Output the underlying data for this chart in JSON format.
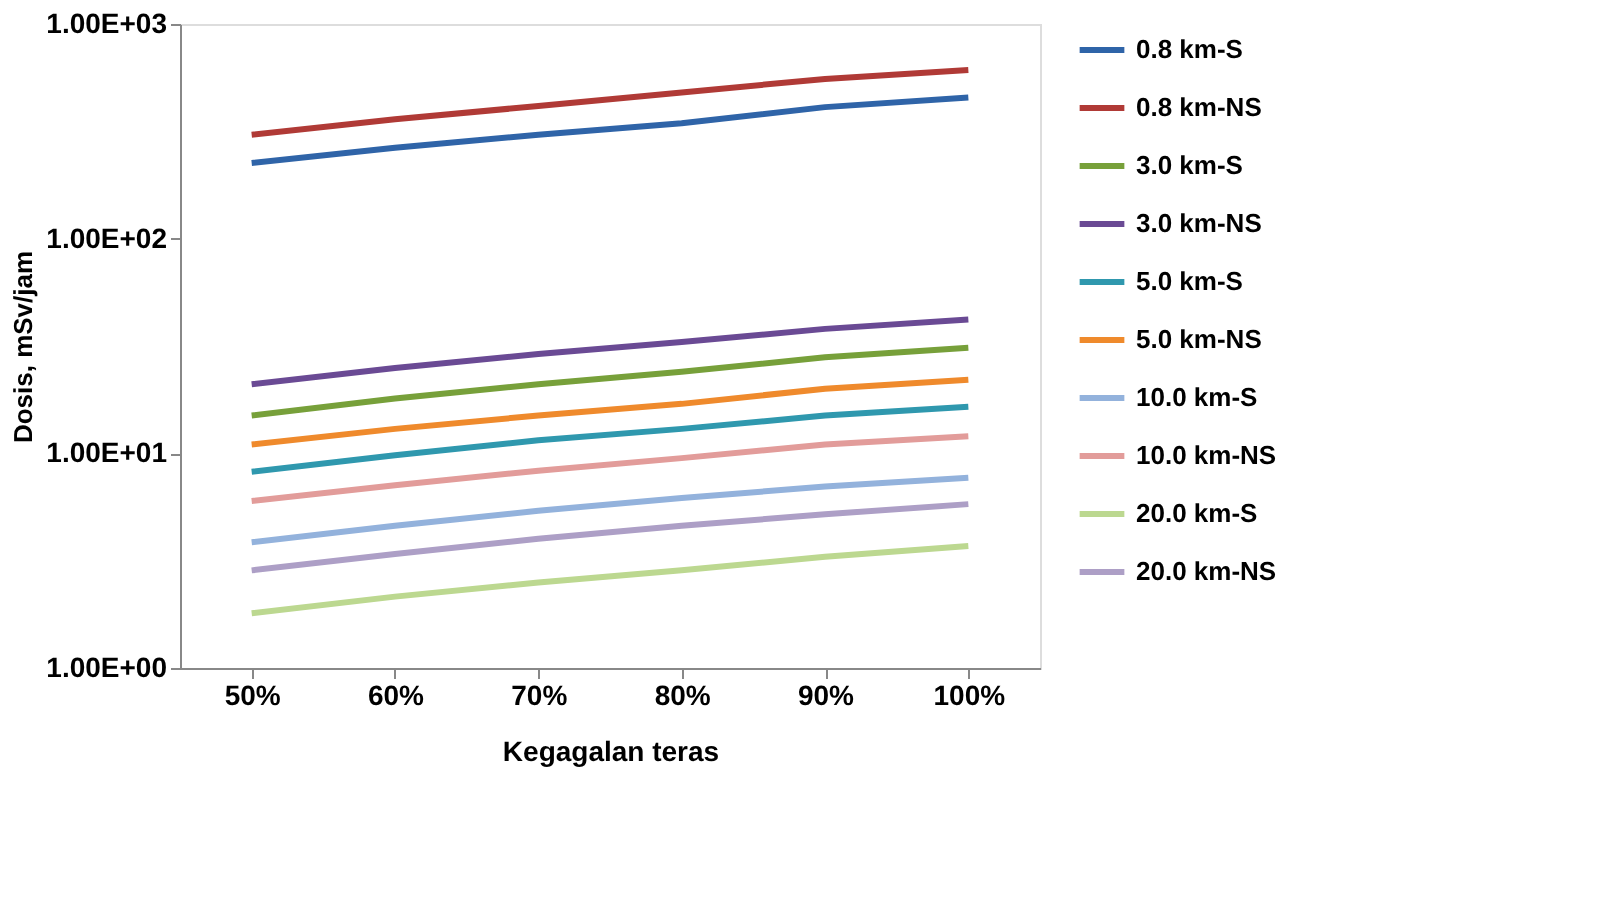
{
  "chart_data": {
    "type": "line",
    "xlabel": "Kegagalan teras",
    "ylabel": "Dosis, mSv/jam",
    "categories": [
      "50%",
      "60%",
      "70%",
      "80%",
      "90%",
      "100%"
    ],
    "log": true,
    "ylim": [
      1,
      1000
    ],
    "yticks": [
      {
        "value": 1,
        "label": "1.00E+00"
      },
      {
        "value": 10,
        "label": "1.00E+01"
      },
      {
        "value": 100,
        "label": "1.00E+02"
      },
      {
        "value": 1000,
        "label": "1.00E+03"
      }
    ],
    "grid": false,
    "legend": "right",
    "marker": "none",
    "line_style": "solid",
    "series": [
      {
        "name": "0.8 km-S",
        "color": "#2f64a8",
        "values": [
          225,
          265,
          305,
          345,
          410,
          455
        ]
      },
      {
        "name": "0.8 km-NS",
        "color": "#b03a36",
        "values": [
          305,
          360,
          415,
          480,
          555,
          610
        ]
      },
      {
        "name": "3.0 km-S",
        "color": "#77a03a",
        "values": [
          15,
          18,
          21,
          24,
          28,
          31
        ]
      },
      {
        "name": "3.0 km-NS",
        "color": "#6a4a94",
        "values": [
          21,
          25,
          29,
          33,
          38,
          42
        ]
      },
      {
        "name": "5.0 km-S",
        "color": "#2f98ae",
        "values": [
          8.2,
          9.8,
          11.5,
          13,
          15,
          16.5
        ]
      },
      {
        "name": "5.0 km-NS",
        "color": "#ef8a2c",
        "values": [
          11,
          13,
          15,
          17,
          20,
          22
        ]
      },
      {
        "name": "10.0 km-S",
        "color": "#93b2dc",
        "values": [
          3.85,
          4.6,
          5.4,
          6.2,
          7,
          7.7
        ]
      },
      {
        "name": "10.0  km-NS",
        "color": "#e29c9a",
        "values": [
          6,
          7.1,
          8.3,
          9.5,
          11,
          12
        ]
      },
      {
        "name": "20.0 km-S",
        "color": "#bcd890",
        "values": [
          1.8,
          2.15,
          2.5,
          2.85,
          3.3,
          3.7
        ]
      },
      {
        "name": "20.0 km-NS",
        "color": "#ad9fc6",
        "values": [
          2.85,
          3.4,
          4,
          4.6,
          5.2,
          5.8
        ]
      }
    ]
  }
}
